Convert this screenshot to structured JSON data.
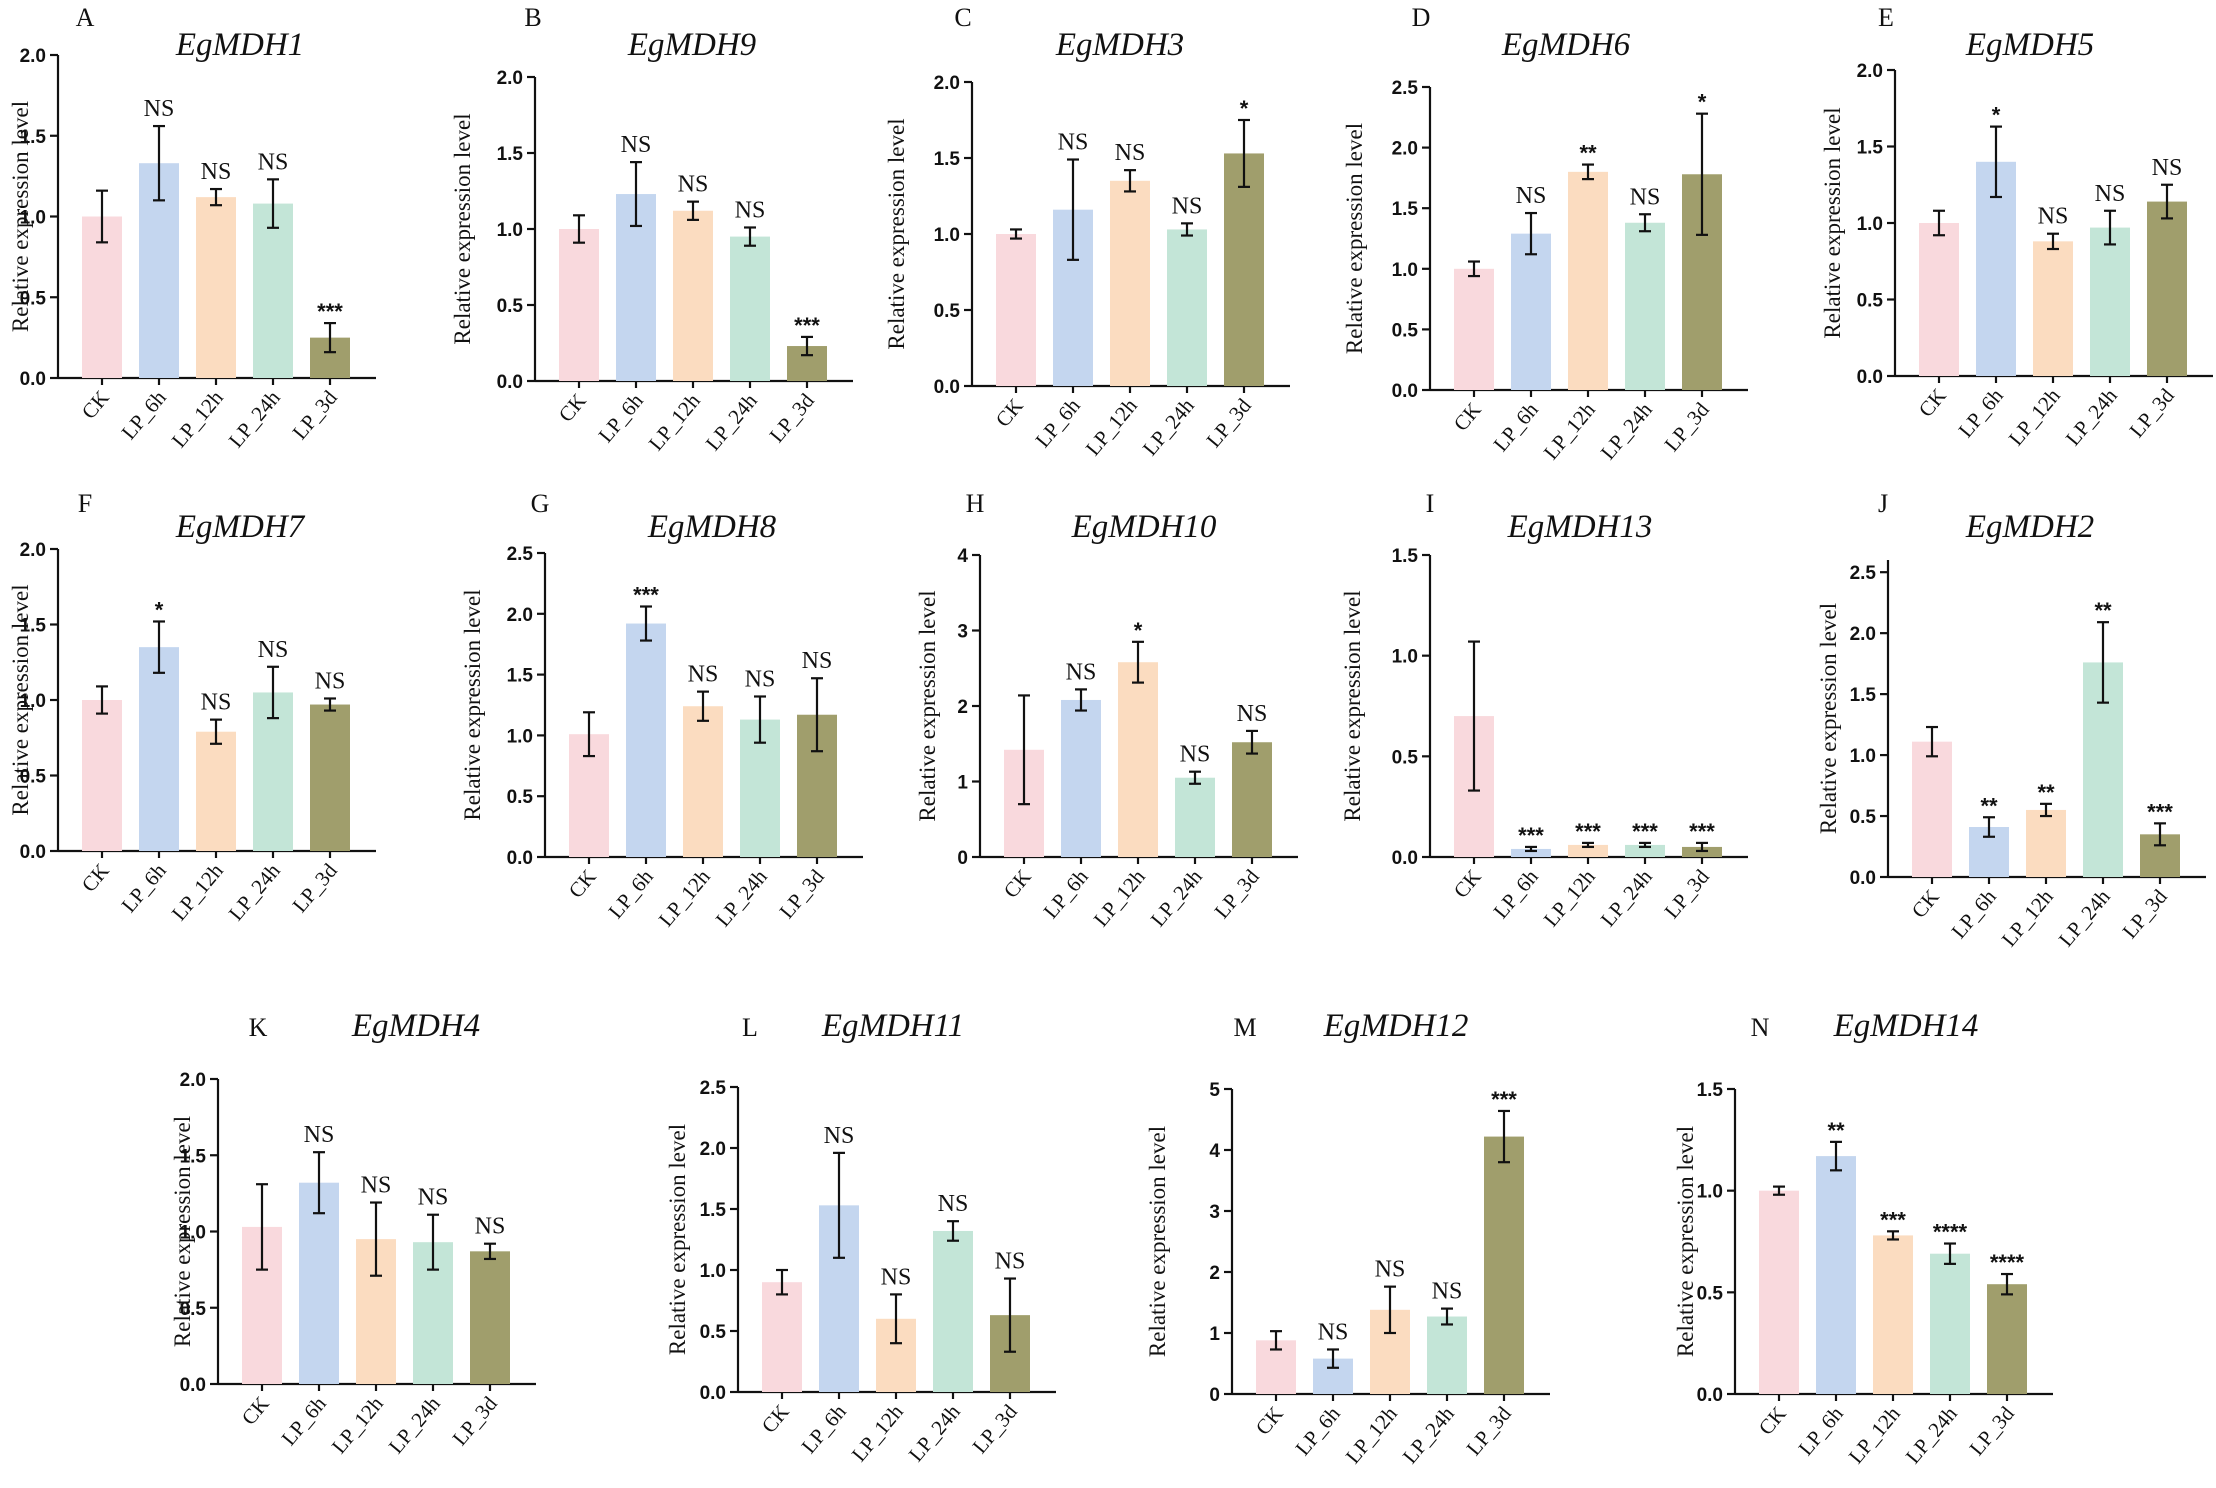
{
  "figure": {
    "categories": [
      "CK",
      "LP_6h",
      "LP_12h",
      "LP_24h",
      "LP_3d"
    ],
    "category_colors": [
      "#f9d9dd",
      "#c4d6ef",
      "#fbdcc0",
      "#c3e5d7",
      "#a09e6c"
    ],
    "ylabel": "Relative expression level"
  },
  "chart_data": [
    {
      "panel": "A",
      "title": "EgMDH1",
      "type": "bar",
      "ylim": [
        0,
        2.0
      ],
      "yticks": [
        "0.0",
        "0.5",
        "1.0",
        "1.5",
        "2.0"
      ],
      "values": [
        1.0,
        1.33,
        1.12,
        1.08,
        0.25
      ],
      "errors": [
        0.16,
        0.23,
        0.05,
        0.15,
        0.09
      ],
      "sig": [
        "",
        "NS",
        "NS",
        "NS",
        "***"
      ]
    },
    {
      "panel": "B",
      "title": "EgMDH9",
      "type": "bar",
      "ylim": [
        0,
        2.0
      ],
      "yticks": [
        "0.0",
        "0.5",
        "1.0",
        "1.5",
        "2.0"
      ],
      "values": [
        1.0,
        1.23,
        1.12,
        0.95,
        0.23
      ],
      "errors": [
        0.09,
        0.21,
        0.06,
        0.06,
        0.06
      ],
      "sig": [
        "",
        "NS",
        "NS",
        "NS",
        "***"
      ]
    },
    {
      "panel": "C",
      "title": "EgMDH3",
      "type": "bar",
      "ylim": [
        0,
        2.0
      ],
      "yticks": [
        "0.0",
        "0.5",
        "1.0",
        "1.5",
        "2.0"
      ],
      "values": [
        1.0,
        1.16,
        1.35,
        1.03,
        1.53
      ],
      "errors": [
        0.03,
        0.33,
        0.07,
        0.04,
        0.22
      ],
      "sig": [
        "",
        "NS",
        "NS",
        "NS",
        "*"
      ]
    },
    {
      "panel": "D",
      "title": "EgMDH6",
      "type": "bar",
      "ylim": [
        0,
        2.5
      ],
      "yticks": [
        "0.0",
        "0.5",
        "1.0",
        "1.5",
        "2.0",
        "2.5"
      ],
      "values": [
        1.0,
        1.29,
        1.8,
        1.38,
        1.78
      ],
      "errors": [
        0.06,
        0.17,
        0.06,
        0.07,
        0.5
      ],
      "sig": [
        "",
        "NS",
        "**",
        "NS",
        "*"
      ]
    },
    {
      "panel": "E",
      "title": "EgMDH5",
      "type": "bar",
      "ylim": [
        0,
        2.0
      ],
      "yticks": [
        "0.0",
        "0.5",
        "1.0",
        "1.5",
        "2.0"
      ],
      "values": [
        1.0,
        1.4,
        0.88,
        0.97,
        1.14
      ],
      "errors": [
        0.08,
        0.23,
        0.05,
        0.11,
        0.11
      ],
      "sig": [
        "",
        "*",
        "NS",
        "NS",
        "NS"
      ]
    },
    {
      "panel": "F",
      "title": "EgMDH7",
      "type": "bar",
      "ylim": [
        0,
        2.0
      ],
      "yticks": [
        "0.0",
        "0.5",
        "1.0",
        "1.5",
        "2.0"
      ],
      "values": [
        1.0,
        1.35,
        0.79,
        1.05,
        0.97
      ],
      "errors": [
        0.09,
        0.17,
        0.08,
        0.17,
        0.04
      ],
      "sig": [
        "",
        "*",
        "NS",
        "NS",
        "NS"
      ]
    },
    {
      "panel": "G",
      "title": "EgMDH8",
      "type": "bar",
      "ylim": [
        0,
        2.5
      ],
      "yticks": [
        "0.0",
        "0.5",
        "1.0",
        "1.5",
        "2.0",
        "2.5"
      ],
      "values": [
        1.01,
        1.92,
        1.24,
        1.13,
        1.17
      ],
      "errors": [
        0.18,
        0.14,
        0.12,
        0.19,
        0.3
      ],
      "sig": [
        "",
        "***",
        "NS",
        "NS",
        "NS"
      ]
    },
    {
      "panel": "H",
      "title": "EgMDH10",
      "type": "bar",
      "ylim": [
        0,
        4
      ],
      "yticks": [
        "0",
        "1",
        "2",
        "3",
        "4"
      ],
      "values": [
        1.42,
        2.08,
        2.58,
        1.05,
        1.52
      ],
      "errors": [
        0.72,
        0.14,
        0.27,
        0.08,
        0.15
      ],
      "sig": [
        "",
        "NS",
        "*",
        "NS",
        "NS"
      ]
    },
    {
      "panel": "I",
      "title": "EgMDH13",
      "type": "bar",
      "ylim": [
        0,
        1.5
      ],
      "yticks": [
        "0.0",
        "0.5",
        "1.0",
        "1.5"
      ],
      "values": [
        0.7,
        0.04,
        0.06,
        0.06,
        0.05
      ],
      "errors": [
        0.37,
        0.01,
        0.01,
        0.01,
        0.02
      ],
      "sig": [
        "",
        "***",
        "***",
        "***",
        "***"
      ]
    },
    {
      "panel": "J",
      "title": "EgMDH2",
      "type": "bar",
      "ylim": [
        0,
        2.6
      ],
      "yticks": [
        "0.0",
        "0.5",
        "1.0",
        "1.5",
        "2.0",
        "2.5"
      ],
      "values": [
        1.11,
        0.41,
        0.55,
        1.76,
        0.35
      ],
      "errors": [
        0.12,
        0.08,
        0.05,
        0.33,
        0.09
      ],
      "sig": [
        "",
        "**",
        "**",
        "**",
        "***"
      ]
    },
    {
      "panel": "K",
      "title": "EgMDH4",
      "type": "bar",
      "ylim": [
        0,
        2.0
      ],
      "yticks": [
        "0.0",
        "0.5",
        "1.0",
        "1.5",
        "2.0"
      ],
      "values": [
        1.03,
        1.32,
        0.95,
        0.93,
        0.87
      ],
      "errors": [
        0.28,
        0.2,
        0.24,
        0.18,
        0.05
      ],
      "sig": [
        "",
        "NS",
        "NS",
        "NS",
        "NS"
      ]
    },
    {
      "panel": "L",
      "title": "EgMDH11",
      "type": "bar",
      "ylim": [
        0,
        2.5
      ],
      "yticks": [
        "0.0",
        "0.5",
        "1.0",
        "1.5",
        "2.0",
        "2.5"
      ],
      "values": [
        0.9,
        1.53,
        0.6,
        1.32,
        0.63
      ],
      "errors": [
        0.1,
        0.43,
        0.2,
        0.08,
        0.3
      ],
      "sig": [
        "",
        "NS",
        "NS",
        "NS",
        "NS"
      ]
    },
    {
      "panel": "M",
      "title": "EgMDH12",
      "type": "bar",
      "ylim": [
        0,
        5
      ],
      "yticks": [
        "0",
        "1",
        "2",
        "3",
        "4",
        "5"
      ],
      "values": [
        0.88,
        0.58,
        1.38,
        1.27,
        4.22
      ],
      "errors": [
        0.15,
        0.15,
        0.38,
        0.13,
        0.42
      ],
      "sig": [
        "",
        "NS",
        "NS",
        "NS",
        "***"
      ]
    },
    {
      "panel": "N",
      "title": "EgMDH14",
      "type": "bar",
      "ylim": [
        0,
        1.5
      ],
      "yticks": [
        "0.0",
        "0.5",
        "1.0",
        "1.5"
      ],
      "values": [
        1.0,
        1.17,
        0.78,
        0.69,
        0.54
      ],
      "errors": [
        0.02,
        0.07,
        0.02,
        0.05,
        0.05
      ],
      "sig": [
        "",
        "**",
        "***",
        "****",
        "****"
      ]
    }
  ]
}
